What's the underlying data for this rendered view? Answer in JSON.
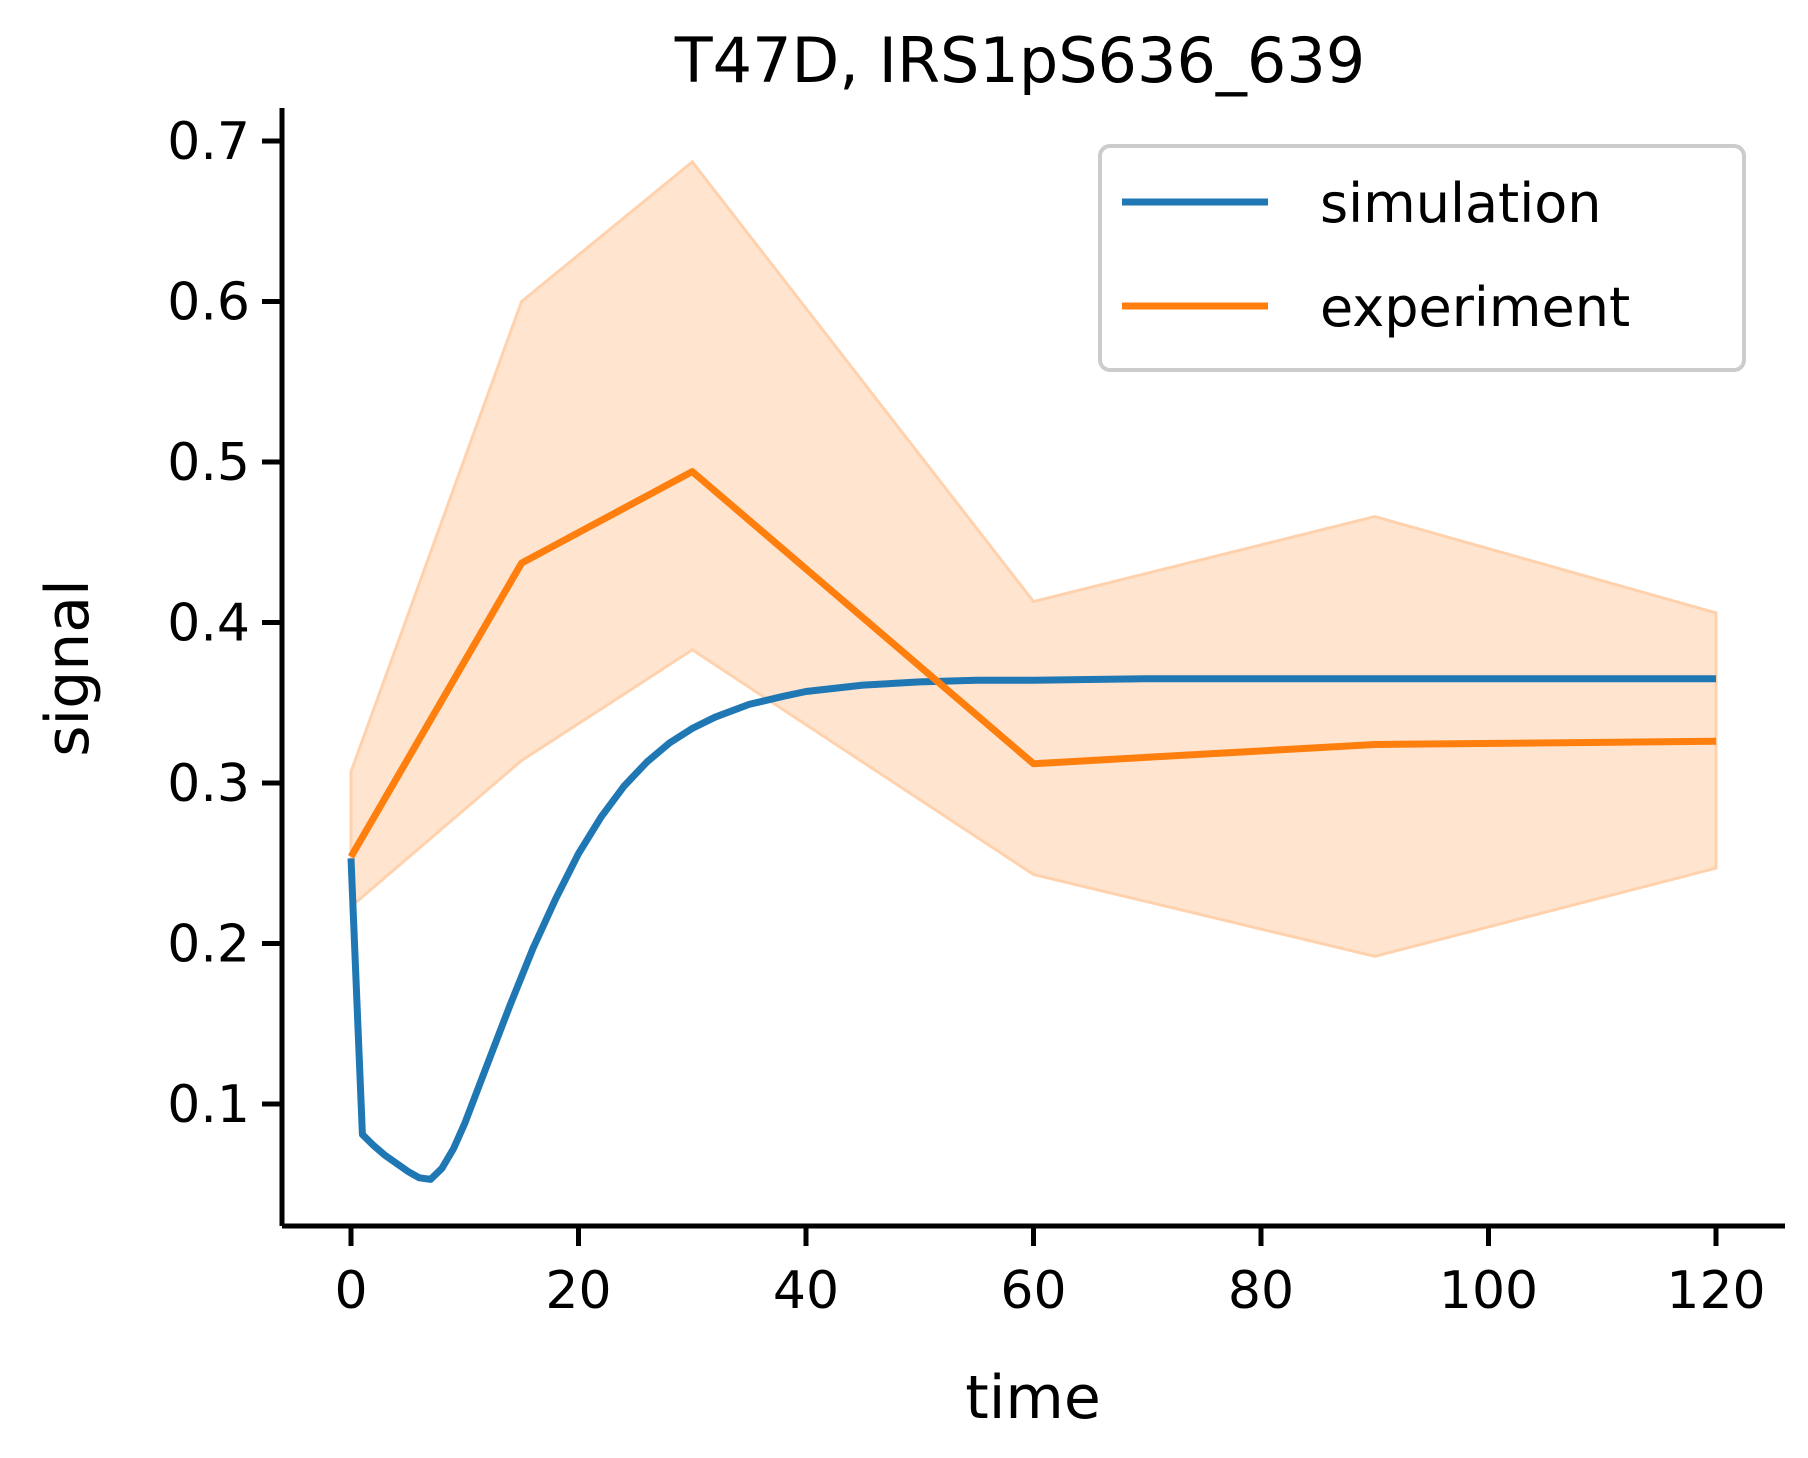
{
  "chart_data": {
    "type": "line",
    "title": "T47D, IRS1pS636_639",
    "xlabel": "time",
    "ylabel": "signal",
    "xlim": [
      -6,
      126
    ],
    "ylim": [
      0.024,
      0.72
    ],
    "xticks": [
      0,
      20,
      40,
      60,
      80,
      100,
      120
    ],
    "yticks": [
      0.1,
      0.2,
      0.3,
      0.4,
      0.5,
      0.6,
      0.7
    ],
    "xtick_labels": [
      "0",
      "20",
      "40",
      "60",
      "80",
      "100",
      "120"
    ],
    "ytick_labels": [
      "0.1",
      "0.2",
      "0.3",
      "0.4",
      "0.5",
      "0.6",
      "0.7"
    ],
    "grid": false,
    "legend": {
      "position": "top-right"
    },
    "series": [
      {
        "name": "simulation",
        "color": "#1f77b4",
        "x": [
          0,
          1,
          2,
          3,
          4,
          5,
          6,
          7,
          8,
          9,
          10,
          12,
          14,
          16,
          18,
          20,
          22,
          24,
          26,
          28,
          30,
          32,
          35,
          38,
          40,
          45,
          50,
          55,
          60,
          70,
          80,
          90,
          100,
          110,
          120
        ],
        "y": [
          0.253,
          0.081,
          0.074,
          0.068,
          0.063,
          0.058,
          0.054,
          0.053,
          0.06,
          0.072,
          0.088,
          0.125,
          0.162,
          0.197,
          0.228,
          0.256,
          0.279,
          0.298,
          0.313,
          0.325,
          0.334,
          0.341,
          0.349,
          0.354,
          0.357,
          0.361,
          0.363,
          0.364,
          0.364,
          0.365,
          0.365,
          0.365,
          0.365,
          0.365,
          0.365
        ]
      },
      {
        "name": "experiment",
        "color": "#ff7f0e",
        "x": [
          0,
          15,
          30,
          60,
          90,
          120
        ],
        "y": [
          0.254,
          0.437,
          0.494,
          0.312,
          0.324,
          0.326
        ],
        "band_upper": [
          0.307,
          0.6,
          0.687,
          0.413,
          0.466,
          0.406
        ],
        "band_lower": [
          0.223,
          0.314,
          0.383,
          0.243,
          0.192,
          0.247
        ],
        "band_color": "#ffe5d0",
        "band_edge_color": "#ffd2ad"
      }
    ]
  }
}
